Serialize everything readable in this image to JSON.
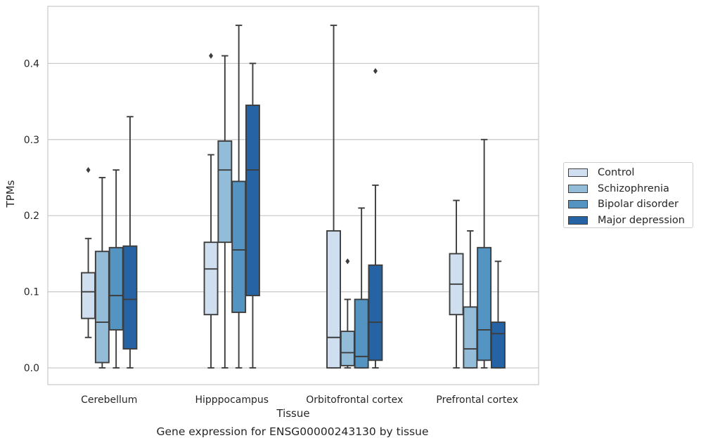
{
  "chart_data": {
    "type": "box",
    "title": "",
    "xlabel": "Tissue",
    "ylabel": "TPMs",
    "caption": "Gene expression for ENSG00000243130 by tissue",
    "ylim": [
      -0.022,
      0.475
    ],
    "yticks": [
      "0.0",
      "0.1",
      "0.2",
      "0.3",
      "0.4"
    ],
    "ytick_values": [
      0.0,
      0.1,
      0.2,
      0.3,
      0.4
    ],
    "grid": "horizontal",
    "legend_position": "right",
    "categories": [
      "Cerebellum",
      "Hipppocampus",
      "Orbitofrontal cortex",
      "Prefrontal cortex"
    ],
    "series": [
      {
        "name": "Control",
        "color": "#cfdff0",
        "boxes": [
          {
            "whisker_low": 0.04,
            "q1": 0.065,
            "median": 0.1,
            "q3": 0.125,
            "whisker_high": 0.17,
            "outliers": [
              0.26
            ]
          },
          {
            "whisker_low": 0.0,
            "q1": 0.07,
            "median": 0.13,
            "q3": 0.165,
            "whisker_high": 0.28,
            "outliers": [
              0.41
            ]
          },
          {
            "whisker_low": 0.0,
            "q1": 0.0,
            "median": 0.04,
            "q3": 0.18,
            "whisker_high": 0.45,
            "outliers": []
          },
          {
            "whisker_low": 0.0,
            "q1": 0.07,
            "median": 0.11,
            "q3": 0.15,
            "whisker_high": 0.22,
            "outliers": []
          }
        ]
      },
      {
        "name": "Schizophrenia",
        "color": "#93bcd9",
        "boxes": [
          {
            "whisker_low": 0.0,
            "q1": 0.007,
            "median": 0.06,
            "q3": 0.153,
            "whisker_high": 0.25,
            "outliers": []
          },
          {
            "whisker_low": 0.0,
            "q1": 0.165,
            "median": 0.26,
            "q3": 0.298,
            "whisker_high": 0.41,
            "outliers": []
          },
          {
            "whisker_low": 0.0,
            "q1": 0.003,
            "median": 0.02,
            "q3": 0.048,
            "whisker_high": 0.09,
            "outliers": [
              0.14
            ]
          },
          {
            "whisker_low": 0.0,
            "q1": 0.0,
            "median": 0.025,
            "q3": 0.08,
            "whisker_high": 0.18,
            "outliers": []
          }
        ]
      },
      {
        "name": "Bipolar disorder",
        "color": "#5394c3",
        "boxes": [
          {
            "whisker_low": 0.0,
            "q1": 0.05,
            "median": 0.095,
            "q3": 0.158,
            "whisker_high": 0.26,
            "outliers": []
          },
          {
            "whisker_low": 0.0,
            "q1": 0.073,
            "median": 0.155,
            "q3": 0.245,
            "whisker_high": 0.45,
            "outliers": []
          },
          {
            "whisker_low": 0.0,
            "q1": 0.0,
            "median": 0.015,
            "q3": 0.09,
            "whisker_high": 0.21,
            "outliers": []
          },
          {
            "whisker_low": 0.0,
            "q1": 0.01,
            "median": 0.05,
            "q3": 0.158,
            "whisker_high": 0.3,
            "outliers": []
          }
        ]
      },
      {
        "name": "Major depression",
        "color": "#2663a4",
        "boxes": [
          {
            "whisker_low": 0.0,
            "q1": 0.025,
            "median": 0.09,
            "q3": 0.16,
            "whisker_high": 0.33,
            "outliers": []
          },
          {
            "whisker_low": 0.0,
            "q1": 0.095,
            "median": 0.26,
            "q3": 0.345,
            "whisker_high": 0.4,
            "outliers": []
          },
          {
            "whisker_low": 0.0,
            "q1": 0.01,
            "median": 0.06,
            "q3": 0.135,
            "whisker_high": 0.24,
            "outliers": [
              0.39
            ]
          },
          {
            "whisker_low": 0.0,
            "q1": 0.0,
            "median": 0.045,
            "q3": 0.06,
            "whisker_high": 0.14,
            "outliers": []
          }
        ]
      }
    ]
  }
}
